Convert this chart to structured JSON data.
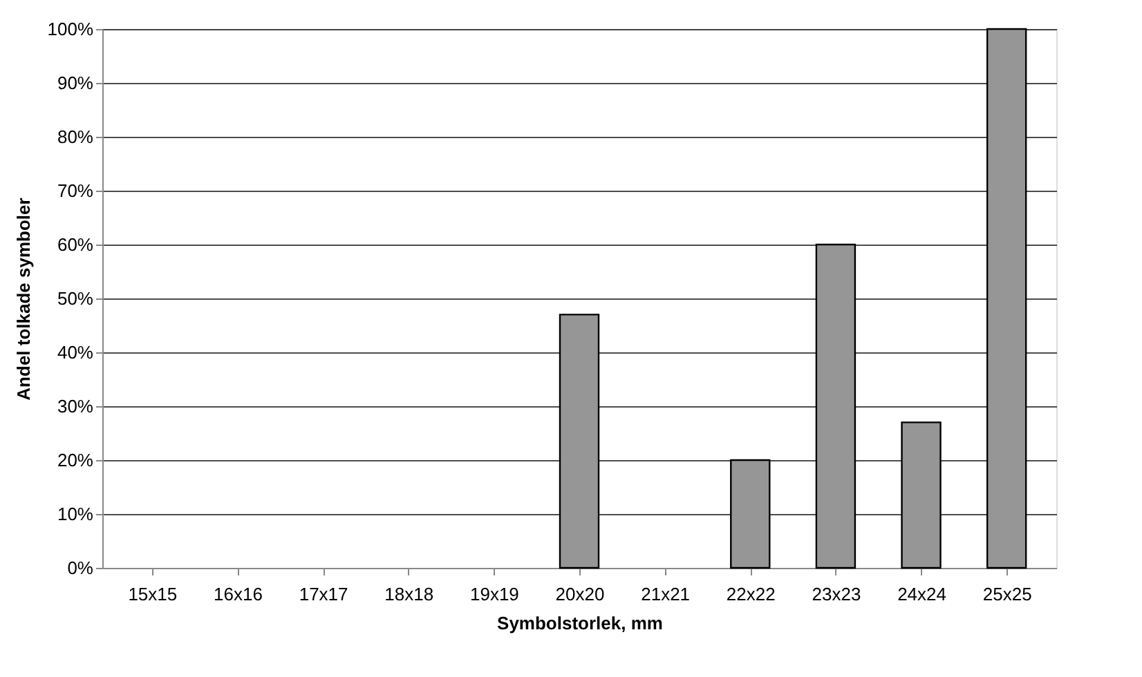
{
  "chart_data": {
    "type": "bar",
    "xlabel": "Symbolstorlek, mm",
    "ylabel": "Andel tolkade symboler",
    "categories": [
      "15x15",
      "16x16",
      "17x17",
      "18x18",
      "19x19",
      "20x20",
      "21x21",
      "22x22",
      "23x23",
      "24x24",
      "25x25"
    ],
    "values": [
      0,
      0,
      0,
      0,
      0,
      47,
      0,
      20,
      60,
      27,
      100
    ],
    "color": "#969696",
    "ylim": [
      0,
      100
    ],
    "yticks": [
      {
        "value": 0,
        "label": "0%"
      },
      {
        "value": 10,
        "label": "10%"
      },
      {
        "value": 20,
        "label": "20%"
      },
      {
        "value": 30,
        "label": "30%"
      },
      {
        "value": 40,
        "label": "40%"
      },
      {
        "value": 50,
        "label": "50%"
      },
      {
        "value": 60,
        "label": "60%"
      },
      {
        "value": 70,
        "label": "70%"
      },
      {
        "value": 80,
        "label": "80%"
      },
      {
        "value": 90,
        "label": "90%"
      },
      {
        "value": 100,
        "label": "100%"
      }
    ],
    "grid": "y"
  }
}
